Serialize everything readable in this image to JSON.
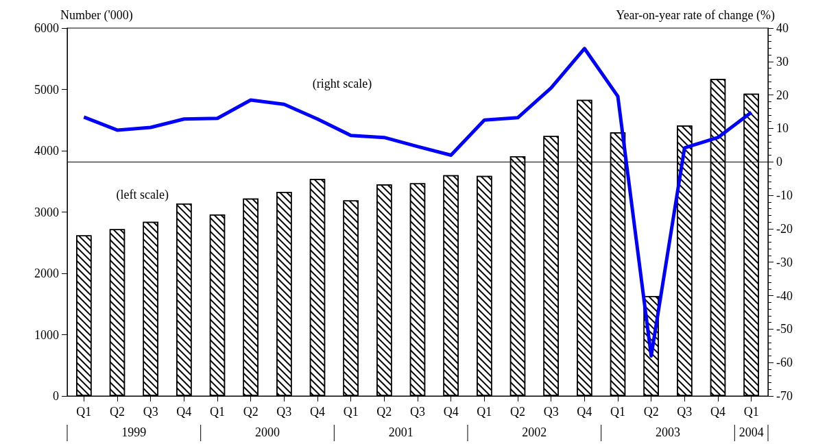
{
  "chart_data": {
    "type": "bar",
    "ylabel": "Number ('000)",
    "y2label": "Year-on-year rate of change (%)",
    "categories": [
      "Q1",
      "Q2",
      "Q3",
      "Q4",
      "Q1",
      "Q2",
      "Q3",
      "Q4",
      "Q1",
      "Q2",
      "Q3",
      "Q4",
      "Q1",
      "Q2",
      "Q3",
      "Q4",
      "Q1",
      "Q2",
      "Q3",
      "Q4",
      "Q1"
    ],
    "series": [
      {
        "axis": "y",
        "color": "#000000",
        "values": [
          2620,
          2720,
          2840,
          3140,
          2960,
          3220,
          3330,
          3540,
          3190,
          3450,
          3470,
          3600,
          3590,
          3910,
          4240,
          4830,
          4300,
          1630,
          4410,
          5170,
          4930
        ]
      },
      {
        "type": "line",
        "axis": "y2",
        "color": "#0000ff",
        "values": [
          13.4,
          9.5,
          10.3,
          12.8,
          13.0,
          18.5,
          17.2,
          12.8,
          7.9,
          7.3,
          4.6,
          2.0,
          12.5,
          13.2,
          22.1,
          33.9,
          19.6,
          -58,
          4.2,
          7.3,
          14.8
        ]
      }
    ],
    "ylim": [
      0,
      6000
    ],
    "yticks": [
      0,
      1000,
      2000,
      3000,
      4000,
      5000,
      6000
    ],
    "y2lim": [
      -70,
      40
    ],
    "y2ticks": [
      -70,
      -60,
      -50,
      -40,
      -30,
      -20,
      -10,
      0,
      10,
      20,
      30,
      40
    ],
    "ref_lines": [
      {
        "axis": "y2",
        "value": 0,
        "color": "#000000"
      }
    ],
    "marker": "none",
    "line_style": "solid",
    "annotations": [
      "(right scale)",
      "(left scale)",
      "1999",
      "2000",
      "2001",
      "2002",
      "2003",
      "2004"
    ]
  }
}
